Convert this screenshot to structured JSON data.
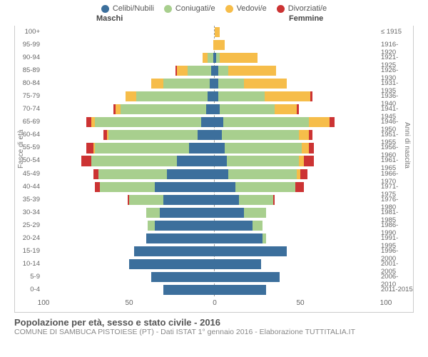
{
  "colors": {
    "celibi": "#3c6f9c",
    "coniugati": "#a8cf8e",
    "vedovi": "#f6bd4a",
    "divorziati": "#cc3333",
    "grid": "#cccccc",
    "axis": "#999999",
    "bg": "#ffffff",
    "text": "#555555"
  },
  "legend": [
    {
      "key": "celibi",
      "label": "Celibi/Nubili"
    },
    {
      "key": "coniugati",
      "label": "Coniugati/e"
    },
    {
      "key": "vedovi",
      "label": "Vedovi/e"
    },
    {
      "key": "divorziati",
      "label": "Divorziati/e"
    }
  ],
  "headers": {
    "male": "Maschi",
    "female": "Femmine"
  },
  "axis": {
    "left_title": "Fasce di età",
    "right_title": "Anni di nascita",
    "ticks": [
      -100,
      -50,
      0,
      50,
      100
    ],
    "tick_labels": [
      "100",
      "50",
      "0",
      "50",
      "100"
    ],
    "xmax": 100
  },
  "title": "Popolazione per età, sesso e stato civile - 2016",
  "subtitle": "COMUNE DI SAMBUCA PISTOIESE (PT) - Dati ISTAT 1° gennaio 2016 - Elaborazione TUTTITALIA.IT",
  "rows": [
    {
      "age": "100+",
      "birth": "≤ 1915",
      "m": {
        "cel": 0,
        "con": 0,
        "ved": 0,
        "div": 0
      },
      "f": {
        "cel": 0,
        "con": 0,
        "ved": 3,
        "div": 0
      }
    },
    {
      "age": "95-99",
      "birth": "1916-1920",
      "m": {
        "cel": 0,
        "con": 0,
        "ved": 1,
        "div": 0
      },
      "f": {
        "cel": 0,
        "con": 0,
        "ved": 6,
        "div": 0
      }
    },
    {
      "age": "90-94",
      "birth": "1921-1925",
      "m": {
        "cel": 1,
        "con": 3,
        "ved": 3,
        "div": 0
      },
      "f": {
        "cel": 1,
        "con": 2,
        "ved": 22,
        "div": 0
      }
    },
    {
      "age": "85-89",
      "birth": "1926-1930",
      "m": {
        "cel": 2,
        "con": 14,
        "ved": 6,
        "div": 1
      },
      "f": {
        "cel": 2,
        "con": 6,
        "ved": 28,
        "div": 0
      }
    },
    {
      "age": "80-84",
      "birth": "1931-1935",
      "m": {
        "cel": 3,
        "con": 27,
        "ved": 7,
        "div": 0
      },
      "f": {
        "cel": 2,
        "con": 15,
        "ved": 25,
        "div": 0
      }
    },
    {
      "age": "75-79",
      "birth": "1936-1940",
      "m": {
        "cel": 4,
        "con": 42,
        "ved": 6,
        "div": 0
      },
      "f": {
        "cel": 2,
        "con": 27,
        "ved": 27,
        "div": 1
      }
    },
    {
      "age": "70-74",
      "birth": "1941-1945",
      "m": {
        "cel": 5,
        "con": 50,
        "ved": 3,
        "div": 1
      },
      "f": {
        "cel": 3,
        "con": 32,
        "ved": 13,
        "div": 1
      }
    },
    {
      "age": "65-69",
      "birth": "1946-1950",
      "m": {
        "cel": 8,
        "con": 62,
        "ved": 2,
        "div": 3
      },
      "f": {
        "cel": 5,
        "con": 50,
        "ved": 12,
        "div": 3
      }
    },
    {
      "age": "60-64",
      "birth": "1951-1955",
      "m": {
        "cel": 10,
        "con": 52,
        "ved": 1,
        "div": 2
      },
      "f": {
        "cel": 4,
        "con": 45,
        "ved": 6,
        "div": 2
      }
    },
    {
      "age": "55-59",
      "birth": "1956-1960",
      "m": {
        "cel": 15,
        "con": 55,
        "ved": 1,
        "div": 4
      },
      "f": {
        "cel": 6,
        "con": 45,
        "ved": 4,
        "div": 3
      }
    },
    {
      "age": "50-54",
      "birth": "1961-1965",
      "m": {
        "cel": 22,
        "con": 50,
        "ved": 0,
        "div": 6
      },
      "f": {
        "cel": 7,
        "con": 42,
        "ved": 3,
        "div": 6
      }
    },
    {
      "age": "45-49",
      "birth": "1966-1970",
      "m": {
        "cel": 28,
        "con": 40,
        "ved": 0,
        "div": 3
      },
      "f": {
        "cel": 8,
        "con": 40,
        "ved": 2,
        "div": 4
      }
    },
    {
      "age": "40-44",
      "birth": "1971-1975",
      "m": {
        "cel": 35,
        "con": 32,
        "ved": 0,
        "div": 3
      },
      "f": {
        "cel": 12,
        "con": 35,
        "ved": 0,
        "div": 5
      }
    },
    {
      "age": "35-39",
      "birth": "1976-1980",
      "m": {
        "cel": 30,
        "con": 20,
        "ved": 0,
        "div": 1
      },
      "f": {
        "cel": 14,
        "con": 20,
        "ved": 0,
        "div": 1
      }
    },
    {
      "age": "30-34",
      "birth": "1981-1985",
      "m": {
        "cel": 32,
        "con": 8,
        "ved": 0,
        "div": 0
      },
      "f": {
        "cel": 17,
        "con": 13,
        "ved": 0,
        "div": 0
      }
    },
    {
      "age": "25-29",
      "birth": "1986-1990",
      "m": {
        "cel": 35,
        "con": 4,
        "ved": 0,
        "div": 0
      },
      "f": {
        "cel": 22,
        "con": 6,
        "ved": 0,
        "div": 0
      }
    },
    {
      "age": "20-24",
      "birth": "1991-1995",
      "m": {
        "cel": 40,
        "con": 0,
        "ved": 0,
        "div": 0
      },
      "f": {
        "cel": 28,
        "con": 2,
        "ved": 0,
        "div": 0
      }
    },
    {
      "age": "15-19",
      "birth": "1996-2000",
      "m": {
        "cel": 47,
        "con": 0,
        "ved": 0,
        "div": 0
      },
      "f": {
        "cel": 42,
        "con": 0,
        "ved": 0,
        "div": 0
      }
    },
    {
      "age": "10-14",
      "birth": "2001-2005",
      "m": {
        "cel": 50,
        "con": 0,
        "ved": 0,
        "div": 0
      },
      "f": {
        "cel": 27,
        "con": 0,
        "ved": 0,
        "div": 0
      }
    },
    {
      "age": "5-9",
      "birth": "2006-2010",
      "m": {
        "cel": 37,
        "con": 0,
        "ved": 0,
        "div": 0
      },
      "f": {
        "cel": 38,
        "con": 0,
        "ved": 0,
        "div": 0
      }
    },
    {
      "age": "0-4",
      "birth": "2011-2015",
      "m": {
        "cel": 30,
        "con": 0,
        "ved": 0,
        "div": 0
      },
      "f": {
        "cel": 30,
        "con": 0,
        "ved": 0,
        "div": 0
      }
    }
  ]
}
